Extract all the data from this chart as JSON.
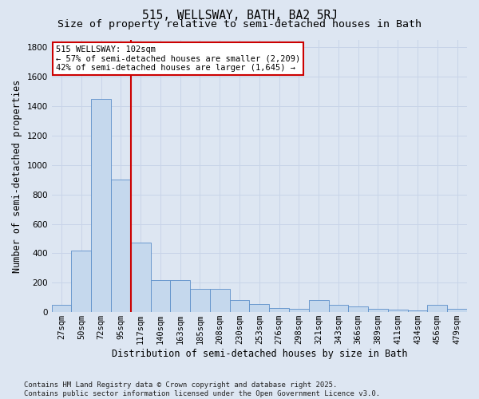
{
  "title": "515, WELLSWAY, BATH, BA2 5RJ",
  "subtitle": "Size of property relative to semi-detached houses in Bath",
  "xlabel": "Distribution of semi-detached houses by size in Bath",
  "ylabel": "Number of semi-detached properties",
  "categories": [
    "27sqm",
    "50sqm",
    "72sqm",
    "95sqm",
    "117sqm",
    "140sqm",
    "163sqm",
    "185sqm",
    "208sqm",
    "230sqm",
    "253sqm",
    "276sqm",
    "298sqm",
    "321sqm",
    "343sqm",
    "366sqm",
    "389sqm",
    "411sqm",
    "434sqm",
    "456sqm",
    "479sqm"
  ],
  "values": [
    50,
    420,
    1450,
    900,
    470,
    220,
    220,
    160,
    160,
    80,
    55,
    30,
    20,
    80,
    50,
    40,
    25,
    15,
    10,
    50,
    20
  ],
  "bar_color": "#c5d8ed",
  "bar_edge_color": "#5b8fc9",
  "annotation_line1": "515 WELLSWAY: 102sqm",
  "annotation_line2": "← 57% of semi-detached houses are smaller (2,209)",
  "annotation_line3": "42% of semi-detached houses are larger (1,645) →",
  "annotation_box_color": "#ffffff",
  "annotation_border_color": "#cc0000",
  "vline_color": "#cc0000",
  "footer": "Contains HM Land Registry data © Crown copyright and database right 2025.\nContains public sector information licensed under the Open Government Licence v3.0.",
  "ylim": [
    0,
    1850
  ],
  "yticks": [
    0,
    200,
    400,
    600,
    800,
    1000,
    1200,
    1400,
    1600,
    1800
  ],
  "grid_color": "#c8d4e8",
  "background_color": "#dde6f2",
  "title_fontsize": 10.5,
  "subtitle_fontsize": 9.5,
  "axis_label_fontsize": 8.5,
  "tick_fontsize": 7.5,
  "footer_fontsize": 6.5,
  "vline_x": 3.5
}
